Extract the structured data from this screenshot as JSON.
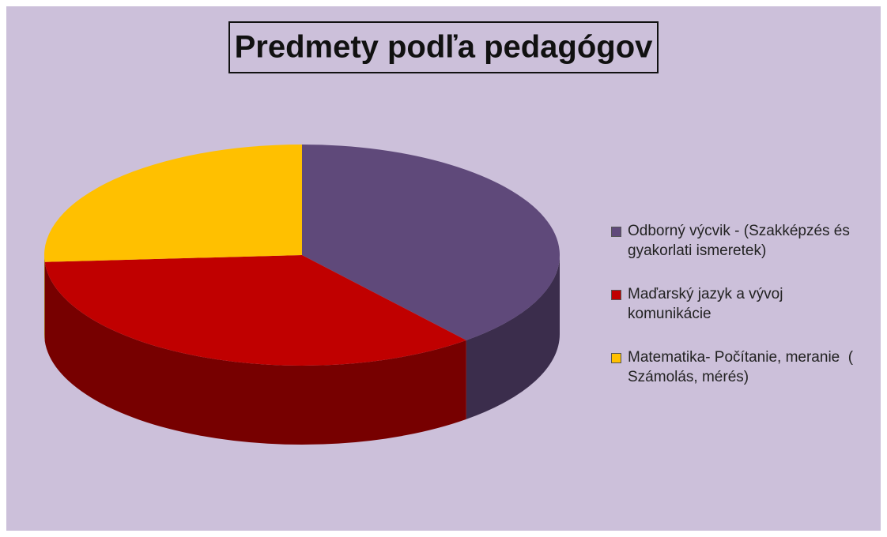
{
  "chart_data": {
    "type": "pie",
    "title": "Predmety podľa pedagógov",
    "categories": [
      "Odborný výcvik - (Szakképzés és gyakorlati ismeretek)",
      "Maďarský jazyk a vývoj komunikácie",
      "Matematika- Počítanie, meranie  ( Számolás, mérés)"
    ],
    "values": [
      39,
      35,
      26
    ],
    "colors": [
      "#5f497a",
      "#c00000",
      "#ffc000"
    ],
    "legend": "right"
  }
}
